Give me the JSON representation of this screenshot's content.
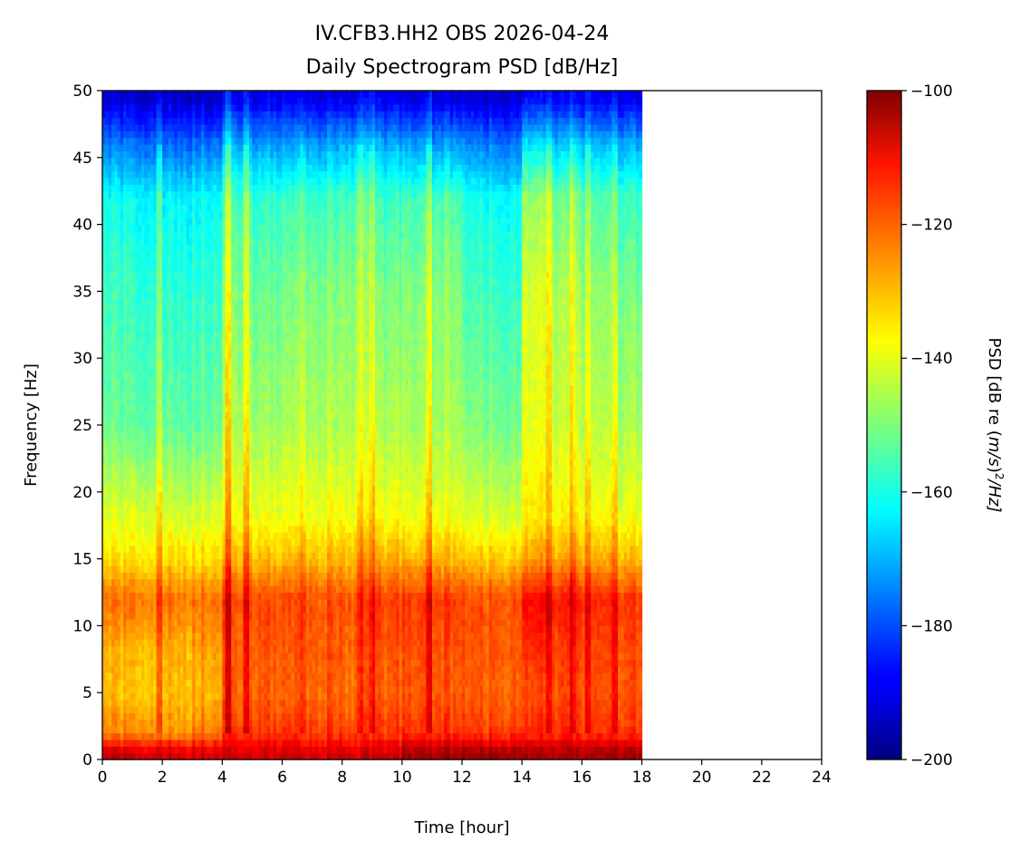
{
  "chart_data": {
    "type": "heatmap",
    "title": "IV.CFB3.HH2 OBS 2026-04-24",
    "subtitle": "Daily Spectrogram PSD [dB/Hz]",
    "xlabel": "Time [hour]",
    "ylabel": "Frequency [Hz]",
    "colorbar_label_prefix": "PSD [dB re (",
    "colorbar_label_unit": "m/s",
    "colorbar_label_exp": "2",
    "colorbar_label_suffix": "/Hz]",
    "xlim": [
      0,
      24
    ],
    "ylim": [
      0,
      50
    ],
    "clim": [
      -200,
      -100
    ],
    "colormap": "jet",
    "data_time_range": [
      0,
      18
    ],
    "x_ticks": [
      "0",
      "2",
      "4",
      "6",
      "8",
      "10",
      "12",
      "14",
      "16",
      "18",
      "20",
      "22",
      "24"
    ],
    "y_ticks": [
      "0",
      "5",
      "10",
      "15",
      "20",
      "25",
      "30",
      "35",
      "40",
      "45",
      "50"
    ],
    "colorbar_ticks": [
      "-100",
      "-120",
      "-140",
      "-160",
      "-180",
      "-200"
    ],
    "frequency_bands_hz": [
      0.5,
      2,
      5,
      8,
      12,
      15,
      18,
      25,
      35,
      42,
      46,
      49.5
    ],
    "hourly_psd_db": [
      [
        -108,
        -126,
        -132,
        -131,
        -124,
        -135,
        -141,
        -153,
        -157,
        -162,
        -176,
        -193
      ],
      [
        -108,
        -126,
        -132,
        -131,
        -124,
        -135,
        -141,
        -153,
        -158,
        -163,
        -177,
        -193
      ],
      [
        -108,
        -127,
        -131,
        -130,
        -124,
        -134,
        -141,
        -153,
        -158,
        -163,
        -177,
        -193
      ],
      [
        -108,
        -124,
        -130,
        -128,
        -123,
        -134,
        -140,
        -152,
        -157,
        -162,
        -176,
        -193
      ],
      [
        -108,
        -118,
        -122,
        -122,
        -119,
        -130,
        -138,
        -145,
        -150,
        -156,
        -170,
        -190
      ],
      [
        -108,
        -118,
        -122,
        -121,
        -120,
        -131,
        -139,
        -147,
        -152,
        -158,
        -172,
        -190
      ],
      [
        -108,
        -118,
        -123,
        -122,
        -120,
        -131,
        -139,
        -146,
        -151,
        -157,
        -172,
        -190
      ],
      [
        -108,
        -118,
        -122,
        -121,
        -120,
        -130,
        -138,
        -145,
        -150,
        -156,
        -171,
        -190
      ],
      [
        -108,
        -119,
        -123,
        -122,
        -120,
        -130,
        -138,
        -145,
        -149,
        -155,
        -170,
        -190
      ],
      [
        -108,
        -118,
        -122,
        -121,
        -119,
        -130,
        -138,
        -146,
        -151,
        -157,
        -171,
        -190
      ],
      [
        -103,
        -117,
        -121,
        -120,
        -118,
        -130,
        -139,
        -146,
        -150,
        -156,
        -172,
        -191
      ],
      [
        -103,
        -117,
        -121,
        -120,
        -118,
        -130,
        -139,
        -146,
        -149,
        -155,
        -172,
        -191
      ],
      [
        -103,
        -118,
        -122,
        -121,
        -120,
        -132,
        -141,
        -150,
        -156,
        -161,
        -175,
        -192
      ],
      [
        -103,
        -118,
        -122,
        -121,
        -120,
        -132,
        -141,
        -151,
        -157,
        -162,
        -176,
        -192
      ],
      [
        -104,
        -117,
        -120,
        -118,
        -113,
        -128,
        -136,
        -140,
        -142,
        -148,
        -165,
        -188
      ],
      [
        -104,
        -117,
        -120,
        -119,
        -115,
        -129,
        -137,
        -143,
        -146,
        -152,
        -168,
        -189
      ],
      [
        -104,
        -118,
        -121,
        -120,
        -117,
        -130,
        -138,
        -145,
        -149,
        -155,
        -170,
        -190
      ],
      [
        -104,
        -118,
        -121,
        -120,
        -118,
        -131,
        -139,
        -146,
        -151,
        -157,
        -171,
        -190
      ]
    ],
    "transient_events": [
      {
        "hour": 1.9,
        "boost_db": 12
      },
      {
        "hour": 4.2,
        "boost_db": 18
      },
      {
        "hour": 4.8,
        "boost_db": 15
      },
      {
        "hour": 6.7,
        "boost_db": 8
      },
      {
        "hour": 8.6,
        "boost_db": 12
      },
      {
        "hour": 9.0,
        "boost_db": 12
      },
      {
        "hour": 10.9,
        "boost_db": 15
      },
      {
        "hour": 14.9,
        "boost_db": 12
      },
      {
        "hour": 15.7,
        "boost_db": 12
      },
      {
        "hour": 16.2,
        "boost_db": 12
      },
      {
        "hour": 17.1,
        "boost_db": 10
      }
    ]
  }
}
